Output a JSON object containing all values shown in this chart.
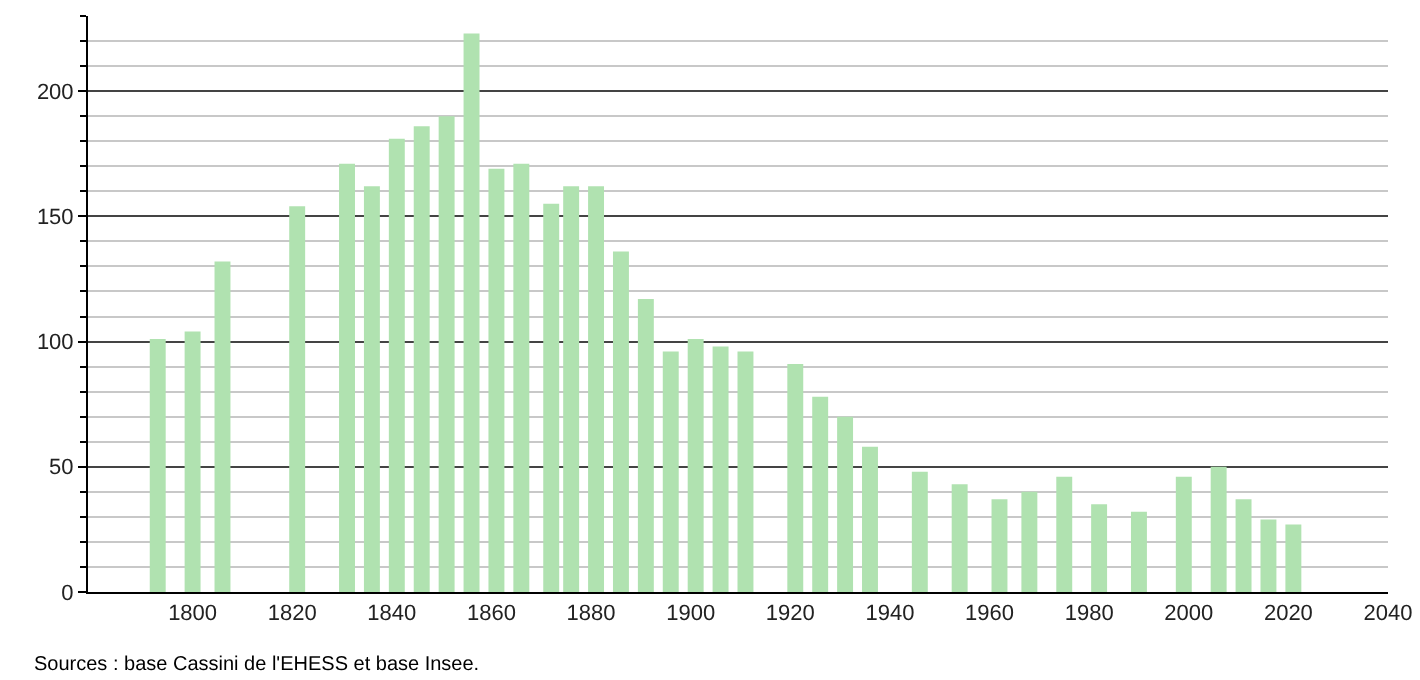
{
  "chart_data": {
    "type": "bar",
    "x": [
      1793,
      1800,
      1806,
      1821,
      1831,
      1836,
      1841,
      1846,
      1851,
      1856,
      1861,
      1866,
      1872,
      1876,
      1881,
      1886,
      1891,
      1896,
      1901,
      1906,
      1911,
      1921,
      1926,
      1931,
      1936,
      1946,
      1954,
      1962,
      1968,
      1975,
      1982,
      1990,
      1999,
      2006,
      2011,
      2016,
      2021
    ],
    "values": [
      101,
      104,
      132,
      154,
      171,
      162,
      181,
      186,
      190,
      223,
      169,
      171,
      155,
      162,
      162,
      136,
      117,
      96,
      101,
      98,
      96,
      91,
      78,
      70,
      58,
      48,
      43,
      37,
      40,
      46,
      35,
      32,
      46,
      50,
      37,
      29,
      27
    ],
    "color": "#b0e2b0",
    "xlim": [
      1779,
      2040
    ],
    "xticks": [
      1800,
      1820,
      1840,
      1860,
      1880,
      1900,
      1920,
      1940,
      1960,
      1980,
      2000,
      2020,
      2040
    ],
    "ylim": [
      0,
      230
    ],
    "yticks": [
      0,
      50,
      100,
      150,
      200
    ],
    "grid": "y",
    "annotations": [
      "Sources : base Cassini de l'EHESS et base Insee."
    ]
  }
}
